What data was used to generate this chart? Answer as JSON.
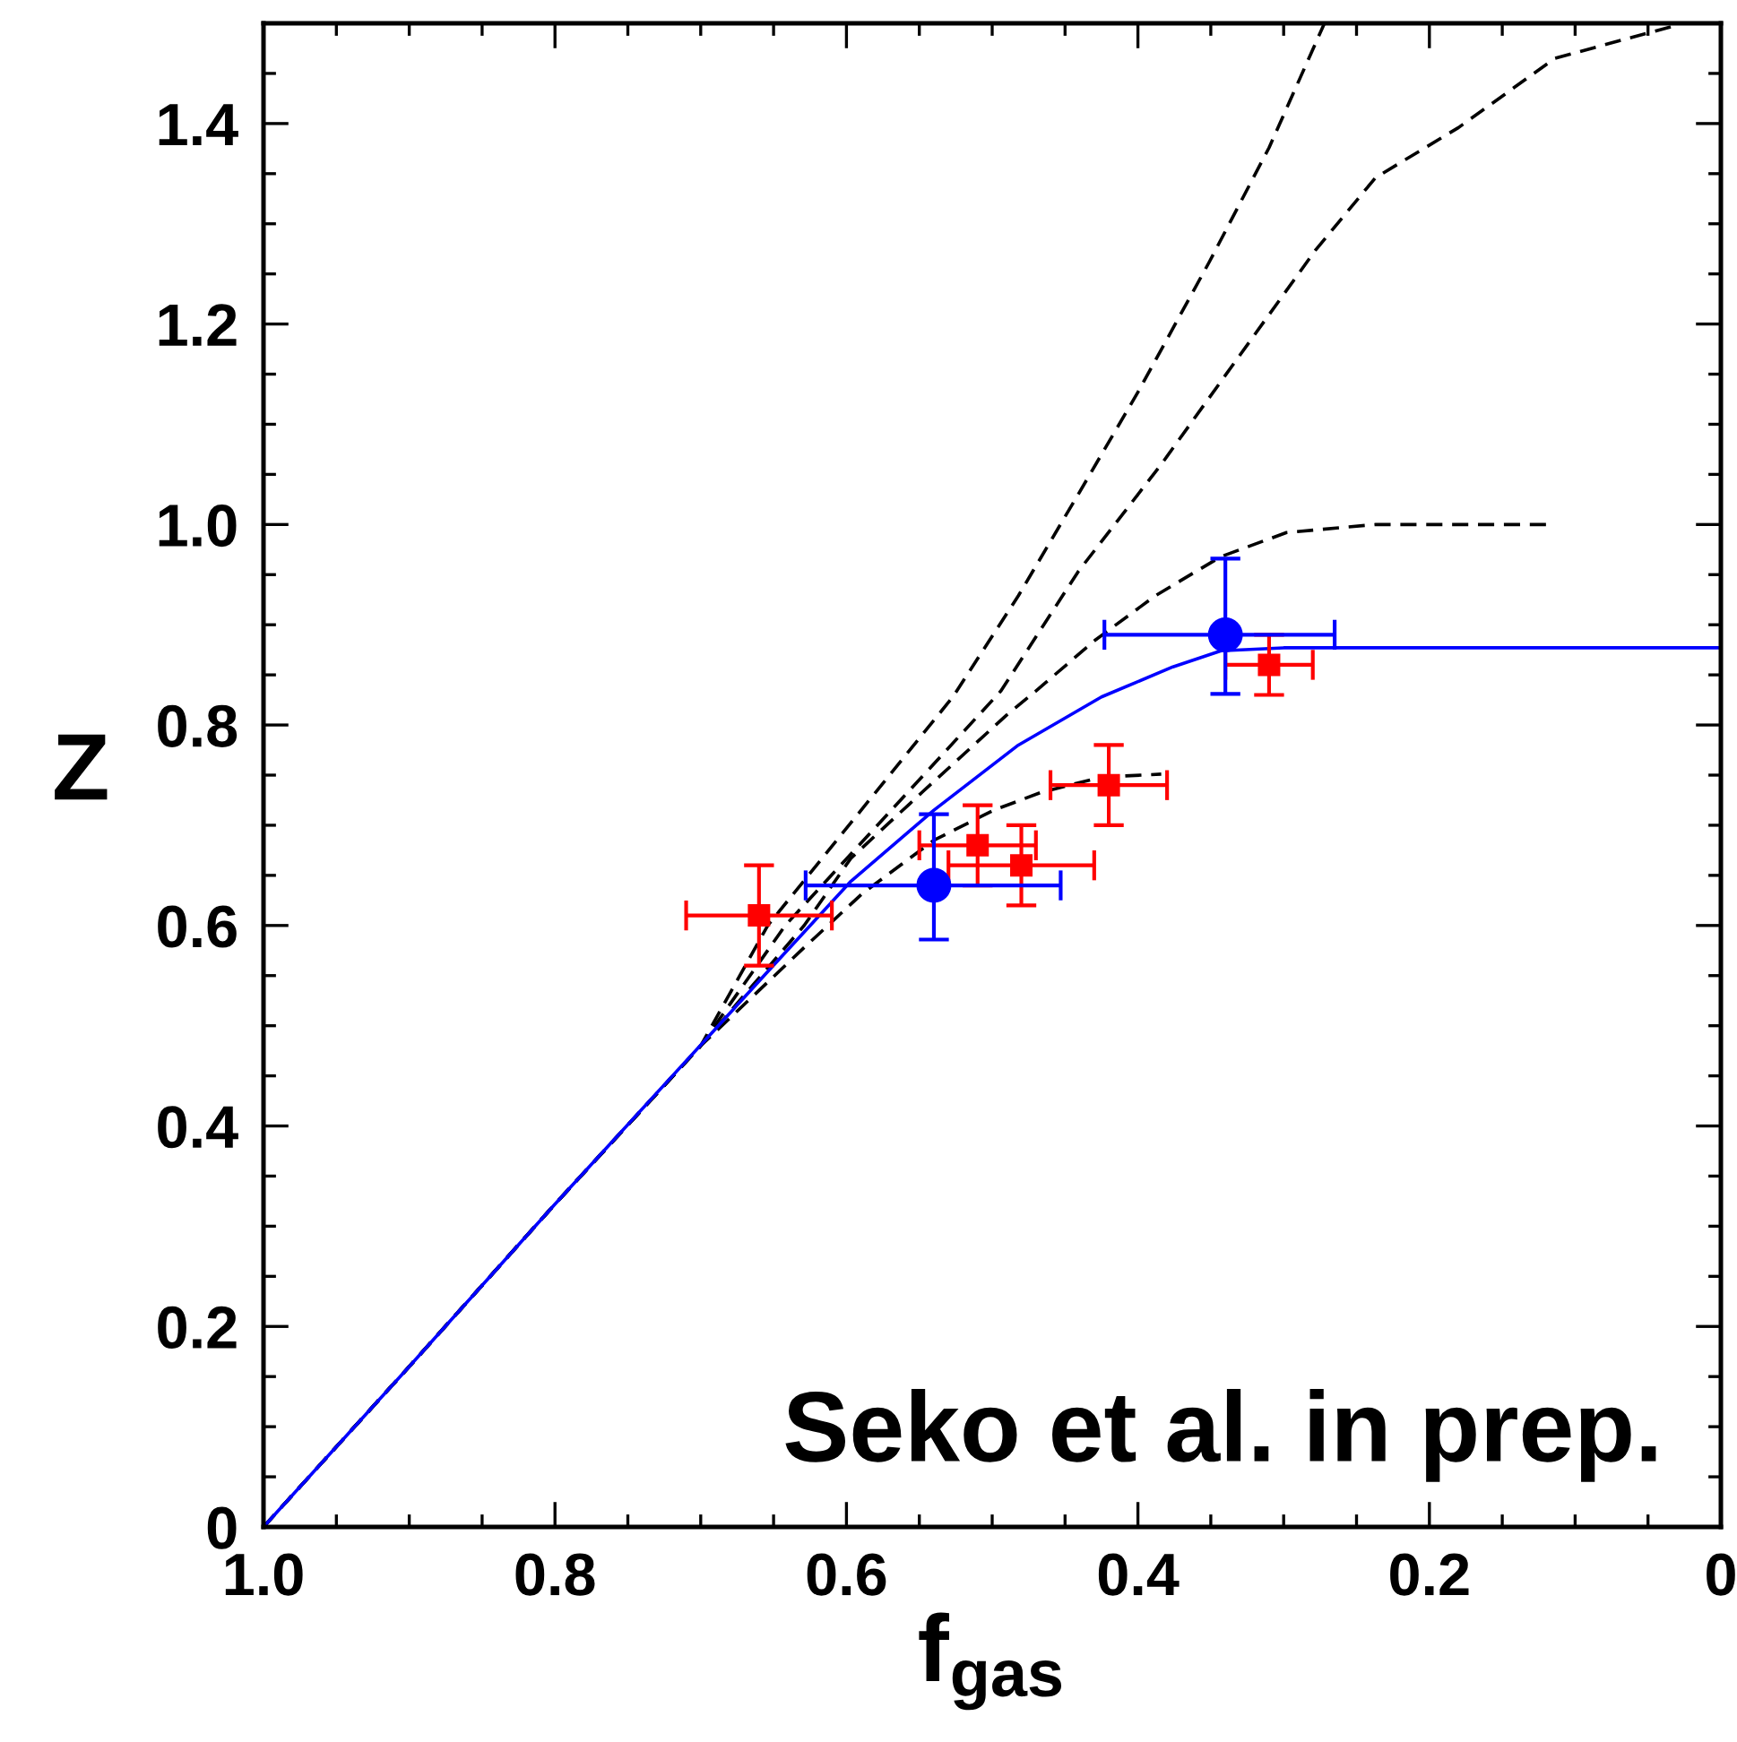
{
  "chart_data": {
    "type": "line",
    "xlabel": "f$_{gas}$",
    "ylabel": "Z",
    "xlim": [
      1.0,
      0
    ],
    "ylim": [
      0,
      1.5
    ],
    "xticks": [
      {
        "value": 1.0,
        "label": "1.0"
      },
      {
        "value": 0.95,
        "label": null
      },
      {
        "value": 0.9,
        "label": null
      },
      {
        "value": 0.85,
        "label": null
      },
      {
        "value": 0.8,
        "label": "0.8"
      },
      {
        "value": 0.75,
        "label": null
      },
      {
        "value": 0.7,
        "label": null
      },
      {
        "value": 0.65,
        "label": null
      },
      {
        "value": 0.6,
        "label": "0.6"
      },
      {
        "value": 0.55,
        "label": null
      },
      {
        "value": 0.5,
        "label": null
      },
      {
        "value": 0.45,
        "label": null
      },
      {
        "value": 0.4,
        "label": "0.4"
      },
      {
        "value": 0.35,
        "label": null
      },
      {
        "value": 0.3,
        "label": null
      },
      {
        "value": 0.25,
        "label": null
      },
      {
        "value": 0.2,
        "label": "0.2"
      },
      {
        "value": 0.15,
        "label": null
      },
      {
        "value": 0.1,
        "label": null
      },
      {
        "value": 0.05,
        "label": null
      },
      0
    ],
    "yticks": [
      0,
      {
        "value": 0.05,
        "label": null
      },
      {
        "value": 0.1,
        "label": null
      },
      {
        "value": 0.15,
        "label": null
      },
      0.2,
      {
        "value": 0.25,
        "label": null
      },
      {
        "value": 0.3,
        "label": null
      },
      {
        "value": 0.35,
        "label": null
      },
      0.4,
      {
        "value": 0.45,
        "label": null
      },
      {
        "value": 0.5,
        "label": null
      },
      {
        "value": 0.55,
        "label": null
      },
      0.6,
      {
        "value": 0.65,
        "label": null
      },
      {
        "value": 0.7,
        "label": null
      },
      {
        "value": 0.75,
        "label": null
      },
      0.8,
      {
        "value": 0.85,
        "label": null
      },
      {
        "value": 0.9,
        "label": null
      },
      {
        "value": 0.95,
        "label": null
      },
      {
        "value": 1.0,
        "label": "1.0"
      },
      {
        "value": 1.05,
        "label": null
      },
      {
        "value": 1.1,
        "label": null
      },
      {
        "value": 1.15,
        "label": null
      },
      {
        "value": 1.2,
        "label": "1.2"
      },
      {
        "value": 1.25,
        "label": null
      },
      {
        "value": 1.3,
        "label": null
      },
      {
        "value": 1.35,
        "label": null
      },
      {
        "value": 1.4,
        "label": "1.4"
      },
      {
        "value": 1.45,
        "label": null
      }
    ],
    "annotations": [
      "Seko et al. in prep."
    ],
    "series": [
      {
        "line_style": "dashed",
        "color": "#000000",
        "x": [
          1.0,
          0.9,
          0.8,
          0.7,
          0.629,
          0.589,
          0.54,
          0.499,
          0.466,
          0.425,
          0.384
        ],
        "values": [
          0,
          0.16,
          0.322,
          0.48,
          0.578,
          0.632,
          0.685,
          0.715,
          0.733,
          0.748,
          0.751
        ]
      },
      {
        "line_style": "dashed",
        "color": "#000000",
        "x": [
          1.0,
          0.9,
          0.8,
          0.7,
          0.629,
          0.597,
          0.548,
          0.49,
          0.47,
          0.429,
          0.388,
          0.343,
          0.298,
          0.237,
          0.114
        ],
        "values": [
          0,
          0.16,
          0.322,
          0.48,
          0.6,
          0.667,
          0.733,
          0.81,
          0.834,
          0.885,
          0.929,
          0.968,
          0.992,
          1.0,
          1.0
        ]
      },
      {
        "line_style": "dashed",
        "color": "#000000",
        "x": [
          1.0,
          0.9,
          0.8,
          0.7,
          0.642,
          0.494,
          0.441,
          0.384,
          0.331,
          0.278,
          0.237,
          0.18,
          0.114,
          0.028
        ],
        "values": [
          0,
          0.16,
          0.322,
          0.48,
          0.6,
          0.834,
          0.953,
          1.06,
          1.167,
          1.274,
          1.346,
          1.396,
          1.465,
          1.499
        ]
      },
      {
        "line_style": "dashed",
        "color": "#000000",
        "x": [
          1.0,
          0.9,
          0.8,
          0.7,
          0.654,
          0.527,
          0.482,
          0.441,
          0.4,
          0.351,
          0.31,
          0.272
        ],
        "values": [
          0,
          0.16,
          0.322,
          0.48,
          0.6,
          0.828,
          0.929,
          1.03,
          1.132,
          1.262,
          1.376,
          1.5
        ]
      },
      {
        "line_style": "solid",
        "color": "#0000ff",
        "x": [
          1.0,
          0.9,
          0.8,
          0.691,
          0.654,
          0.597,
          0.54,
          0.482,
          0.425,
          0.376,
          0.343,
          0.3,
          0
        ],
        "values": [
          0,
          0.16,
          0.322,
          0.495,
          0.554,
          0.644,
          0.715,
          0.78,
          0.828,
          0.858,
          0.874,
          0.877,
          0.877
        ]
      },
      {
        "type": "scatter",
        "marker": "square",
        "color": "#ff0000",
        "x": [
          0.66,
          0.51,
          0.48,
          0.42,
          0.31
        ],
        "values": [
          0.61,
          0.68,
          0.66,
          0.74,
          0.86
        ],
        "errors": [
          0.05,
          0.04,
          0.04,
          0.04,
          0.03
        ],
        "xerrors": [
          0.05,
          0.04,
          0.05,
          0.04,
          0.03
        ]
      },
      {
        "type": "scatter",
        "marker": "circle",
        "color": "#0000ff",
        "x": [
          0.54,
          0.34
        ],
        "values": [
          0.64,
          0.89
        ],
        "errors": [
          [
            0.586,
            0.711
          ],
          [
            0.831,
            0.966
          ]
        ],
        "xerrors": [
          [
            0.453,
            0.628
          ],
          [
            0.265,
            0.423
          ]
        ]
      }
    ]
  }
}
